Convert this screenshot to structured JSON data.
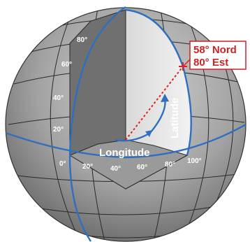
{
  "labels": {
    "longitude": "Longitude",
    "latitude": "Latitude"
  },
  "coordinate": {
    "line1": "58° Nord",
    "line2": "80° Est"
  },
  "latitude_ticks": [
    "80°",
    "60°",
    "40°",
    "20°"
  ],
  "longitude_ticks": [
    "0°",
    "20°",
    "40°",
    "60°",
    "80°",
    "100°"
  ],
  "colors": {
    "globe": "#8a8a8a",
    "grid": "#2a2a2a",
    "axis": "#2f6fbf",
    "marker": "#e02020",
    "label_text": "#cc2222",
    "label_border": "#cc2222"
  }
}
